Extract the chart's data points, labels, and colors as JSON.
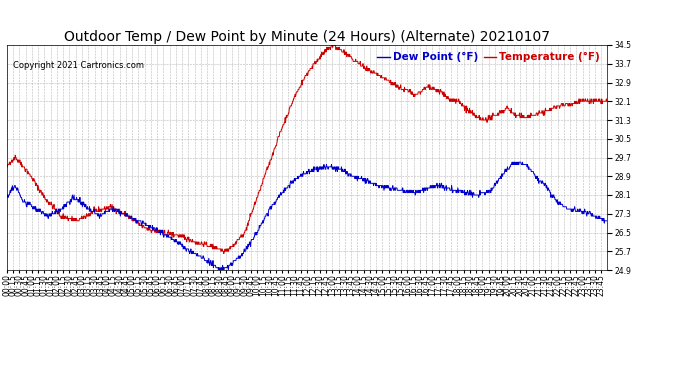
{
  "title": "Outdoor Temp / Dew Point by Minute (24 Hours) (Alternate) 20210107",
  "copyright": "Copyright 2021 Cartronics.com",
  "legend_dew": "Dew Point (°F)",
  "legend_temp": "Temperature (°F)",
  "ylim": [
    24.9,
    34.5
  ],
  "yticks": [
    24.9,
    25.7,
    26.5,
    27.3,
    28.1,
    28.9,
    29.7,
    30.5,
    31.3,
    32.1,
    32.9,
    33.7,
    34.5
  ],
  "temp_color": "#cc0000",
  "dew_color": "#0000cc",
  "background_color": "#ffffff",
  "grid_color": "#b0b0b0",
  "title_fontsize": 10,
  "tick_fontsize": 5.5,
  "copyright_fontsize": 6.0
}
